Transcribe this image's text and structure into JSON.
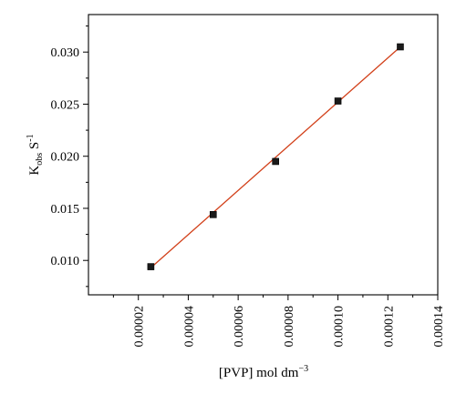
{
  "chart_data": {
    "type": "scatter",
    "xlabel": {
      "main": "[PVP] mol dm",
      "sup": "−3"
    },
    "ylabel": {
      "base": "K",
      "sub": "obs",
      "rest": " S",
      "sup": "-1"
    },
    "xlim": [
      0,
      0.00014
    ],
    "ylim": [
      0.0067,
      0.0336
    ],
    "x_ticks": [
      "0.00002",
      "0.00004",
      "0.00006",
      "0.00008",
      "0.00010",
      "0.00012",
      "0.00014"
    ],
    "y_ticks": [
      "0.010",
      "0.015",
      "0.020",
      "0.025",
      "0.030"
    ],
    "series": [
      {
        "marker": "square",
        "marker_color": "#1a1a1a",
        "x": [
          2.5e-05,
          5e-05,
          7.5e-05,
          0.0001,
          0.000125
        ],
        "y": [
          0.0094,
          0.0144,
          0.0195,
          0.0253,
          0.0305
        ]
      }
    ],
    "fit_line": {
      "color": "#d2401a",
      "x": [
        2.5e-05,
        0.000125
      ],
      "y": [
        0.0093,
        0.0305
      ]
    },
    "grid": false,
    "legend": "none"
  }
}
